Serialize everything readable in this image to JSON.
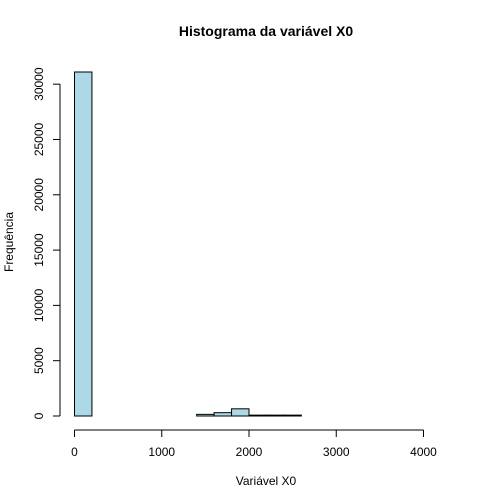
{
  "chart_data": {
    "type": "bar",
    "title": "Histograma da variável X0",
    "xlabel": "Variável X0",
    "ylabel": "Frequência",
    "bin_width": 200,
    "bins": [
      {
        "x0": 0,
        "x1": 200,
        "count": 31100
      },
      {
        "x0": 200,
        "x1": 400,
        "count": 0
      },
      {
        "x0": 400,
        "x1": 600,
        "count": 0
      },
      {
        "x0": 600,
        "x1": 800,
        "count": 0
      },
      {
        "x0": 800,
        "x1": 1000,
        "count": 0
      },
      {
        "x0": 1000,
        "x1": 1200,
        "count": 0
      },
      {
        "x0": 1200,
        "x1": 1400,
        "count": 0
      },
      {
        "x0": 1400,
        "x1": 1600,
        "count": 150
      },
      {
        "x0": 1600,
        "x1": 1800,
        "count": 300
      },
      {
        "x0": 1800,
        "x1": 2000,
        "count": 650
      },
      {
        "x0": 2000,
        "x1": 2200,
        "count": 80
      },
      {
        "x0": 2200,
        "x1": 2400,
        "count": 80
      },
      {
        "x0": 2400,
        "x1": 2600,
        "count": 80
      },
      {
        "x0": 2600,
        "x1": 2800,
        "count": 0
      },
      {
        "x0": 2800,
        "x1": 3000,
        "count": 0
      },
      {
        "x0": 3000,
        "x1": 3200,
        "count": 0
      },
      {
        "x0": 3200,
        "x1": 3400,
        "count": 0
      },
      {
        "x0": 3400,
        "x1": 3600,
        "count": 0
      },
      {
        "x0": 3600,
        "x1": 3800,
        "count": 0
      },
      {
        "x0": 3800,
        "x1": 4000,
        "count": 0
      },
      {
        "x0": 4000,
        "x1": 4200,
        "count": 0
      },
      {
        "x0": 4200,
        "x1": 4400,
        "count": 0
      }
    ],
    "xlim": [
      0,
      4400
    ],
    "ylim": [
      0,
      31100
    ],
    "x_ticks": [
      0,
      1000,
      2000,
      3000,
      4000
    ],
    "x_tick_labels": [
      "0",
      "1000",
      "2000",
      "3000",
      "4000"
    ],
    "y_ticks": [
      0,
      5000,
      10000,
      15000,
      20000,
      25000,
      30000
    ],
    "y_tick_labels": [
      "0",
      "5000",
      "10000",
      "15000",
      "20000",
      "25000",
      "30000"
    ],
    "colors": {
      "bar_fill": "#add8e6",
      "bar_stroke": "#000000"
    }
  }
}
